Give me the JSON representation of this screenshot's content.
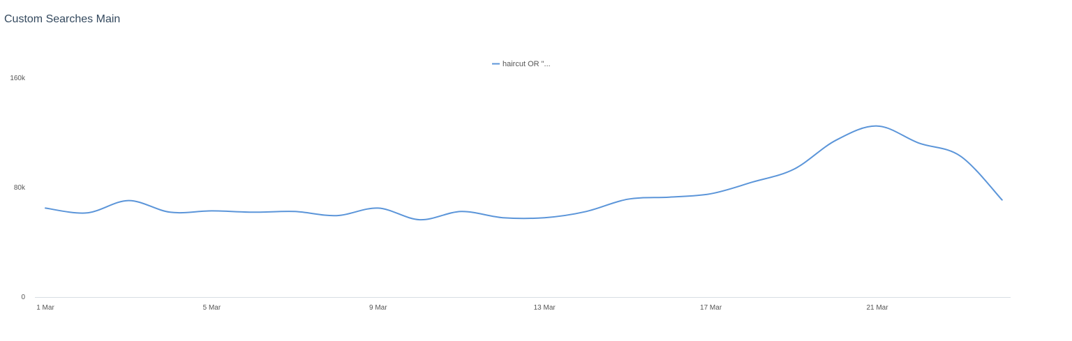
{
  "widget": {
    "title": "Custom Searches Main"
  },
  "colors": {
    "series": "#5b95d9",
    "axis_line": "#d8dde3",
    "tick_text": "#555555",
    "legend_text": "#555555",
    "title_text": "#34495e"
  },
  "chart_data": {
    "type": "line",
    "title": "",
    "xlabel": "",
    "ylabel": "",
    "ylim": [
      0,
      160000
    ],
    "y_ticks": [
      0,
      80000,
      160000
    ],
    "y_tick_labels": [
      "0",
      "80k",
      "160k"
    ],
    "x": [
      "1 Mar",
      "2 Mar",
      "3 Mar",
      "4 Mar",
      "5 Mar",
      "6 Mar",
      "7 Mar",
      "8 Mar",
      "9 Mar",
      "10 Mar",
      "11 Mar",
      "12 Mar",
      "13 Mar",
      "14 Mar",
      "15 Mar",
      "16 Mar",
      "17 Mar",
      "18 Mar",
      "19 Mar",
      "20 Mar",
      "21 Mar",
      "22 Mar",
      "23 Mar",
      "24 Mar"
    ],
    "x_tick_labels": [
      "1 Mar",
      "5 Mar",
      "9 Mar",
      "13 Mar",
      "17 Mar",
      "21 Mar"
    ],
    "legend_position": "top-center",
    "grid": false,
    "series": [
      {
        "name": "haircut OR \"...",
        "values": [
          65000,
          61500,
          70500,
          62000,
          63000,
          62000,
          62500,
          59500,
          65000,
          56500,
          62500,
          58000,
          58000,
          62500,
          71500,
          73000,
          75500,
          84000,
          93500,
          114500,
          125000,
          112500,
          103000,
          71000
        ]
      }
    ]
  }
}
